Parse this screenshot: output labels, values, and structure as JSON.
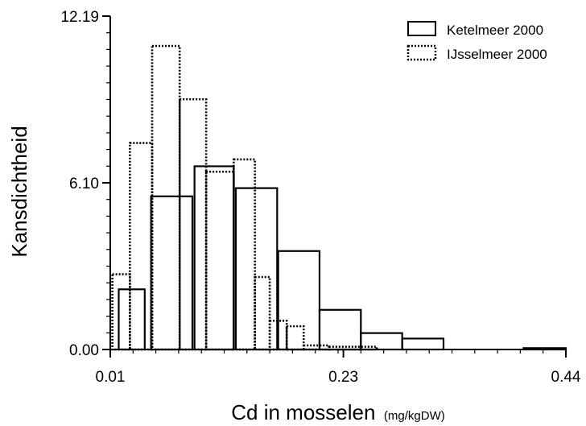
{
  "chart_data": {
    "type": "bar",
    "subtype": "histogram-overlay",
    "xlabel": "Cd in mosselen",
    "xlabel_unit": "(mg/kgDW)",
    "ylabel": "Kansdichtheid",
    "x_ticks": [
      "0.01",
      "0.23",
      "0.44"
    ],
    "y_ticks": [
      "0.00",
      "6.10",
      "12.19"
    ],
    "xlim": [
      0.01,
      0.44
    ],
    "ylim": [
      0,
      12.19
    ],
    "legend_position": "top-right",
    "series": [
      {
        "name": "Ketelmeer 2000",
        "line_style": "solid",
        "bins": [
          {
            "x0": 0.018,
            "x1": 0.0425,
            "y": 2.2
          },
          {
            "x0": 0.0485,
            "x1": 0.0875,
            "y": 5.6
          },
          {
            "x0": 0.0895,
            "x1": 0.1265,
            "y": 6.7
          },
          {
            "x0": 0.1285,
            "x1": 0.1675,
            "y": 5.9
          },
          {
            "x0": 0.1685,
            "x1": 0.2075,
            "y": 3.6
          },
          {
            "x0": 0.2075,
            "x1": 0.2465,
            "y": 1.45
          },
          {
            "x0": 0.2465,
            "x1": 0.2855,
            "y": 0.6
          },
          {
            "x0": 0.2855,
            "x1": 0.3245,
            "y": 0.4
          },
          {
            "x0": 0.4,
            "x1": 0.44,
            "y": 0.05
          }
        ]
      },
      {
        "name": "IJsselmeer 2000",
        "line_style": "dotted",
        "bins": [
          {
            "x0": 0.012,
            "x1": 0.0285,
            "y": 2.75
          },
          {
            "x0": 0.0285,
            "x1": 0.0495,
            "y": 7.55
          },
          {
            "x0": 0.0495,
            "x1": 0.0755,
            "y": 11.1
          },
          {
            "x0": 0.0755,
            "x1": 0.1005,
            "y": 9.15
          },
          {
            "x0": 0.1005,
            "x1": 0.1265,
            "y": 6.5
          },
          {
            "x0": 0.1265,
            "x1": 0.1465,
            "y": 6.95
          },
          {
            "x0": 0.1465,
            "x1": 0.1605,
            "y": 2.65
          },
          {
            "x0": 0.1605,
            "x1": 0.1765,
            "y": 1.05
          },
          {
            "x0": 0.1765,
            "x1": 0.1925,
            "y": 0.85
          },
          {
            "x0": 0.1925,
            "x1": 0.2165,
            "y": 0.15
          },
          {
            "x0": 0.2165,
            "x1": 0.2615,
            "y": 0.1
          }
        ]
      }
    ]
  }
}
